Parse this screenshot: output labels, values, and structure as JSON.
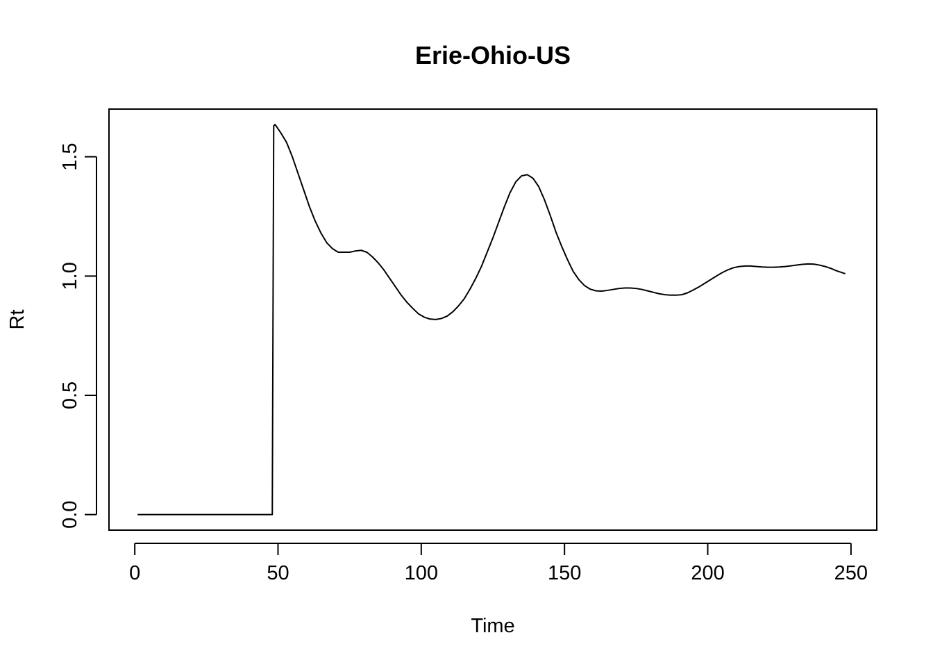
{
  "chart_data": {
    "type": "line",
    "title": "Erie-Ohio-US",
    "xlabel": "Time",
    "ylabel": "Rt",
    "xlim": [
      -9,
      259
    ],
    "ylim": [
      -0.065,
      1.7
    ],
    "x_ticks": [
      0,
      50,
      100,
      150,
      200,
      250
    ],
    "x_tick_labels": [
      "0",
      "50",
      "100",
      "150",
      "200",
      "250"
    ],
    "y_ticks": [
      0.0,
      0.5,
      1.0,
      1.5
    ],
    "y_tick_labels": [
      "0.0",
      "0.5",
      "1.0",
      "1.5"
    ],
    "grid": false,
    "legend": "none",
    "series": [
      {
        "color": "#000000",
        "x": [
          1,
          10,
          20,
          30,
          40,
          48,
          48.5,
          49,
          51,
          53,
          55,
          57,
          59,
          61,
          63,
          65,
          67,
          69,
          71,
          73,
          75,
          77,
          79,
          81,
          83,
          85,
          87,
          89,
          91,
          93,
          95,
          97,
          99,
          101,
          103,
          105,
          107,
          109,
          111,
          113,
          115,
          117,
          119,
          121,
          123,
          125,
          127,
          129,
          131,
          133,
          135,
          137,
          139,
          141,
          143,
          145,
          147,
          149,
          151,
          153,
          155,
          157,
          159,
          161,
          163,
          165,
          167,
          169,
          171,
          173,
          175,
          177,
          179,
          181,
          183,
          185,
          187,
          189,
          191,
          193,
          195,
          197,
          199,
          201,
          203,
          205,
          207,
          209,
          211,
          213,
          215,
          217,
          219,
          221,
          223,
          225,
          227,
          229,
          231,
          233,
          235,
          237,
          239,
          241,
          243,
          245,
          247,
          248
        ],
        "y": [
          0,
          0,
          0,
          0,
          0,
          0,
          1.63,
          1.635,
          1.6,
          1.56,
          1.5,
          1.43,
          1.36,
          1.29,
          1.23,
          1.18,
          1.14,
          1.115,
          1.1,
          1.1,
          1.1,
          1.105,
          1.108,
          1.1,
          1.08,
          1.055,
          1.025,
          0.99,
          0.955,
          0.92,
          0.89,
          0.865,
          0.842,
          0.828,
          0.82,
          0.818,
          0.822,
          0.832,
          0.85,
          0.875,
          0.905,
          0.945,
          0.99,
          1.04,
          1.1,
          1.16,
          1.225,
          1.29,
          1.35,
          1.395,
          1.42,
          1.425,
          1.41,
          1.375,
          1.32,
          1.255,
          1.185,
          1.125,
          1.07,
          1.02,
          0.985,
          0.96,
          0.945,
          0.938,
          0.937,
          0.94,
          0.944,
          0.948,
          0.95,
          0.95,
          0.948,
          0.944,
          0.938,
          0.932,
          0.926,
          0.922,
          0.92,
          0.92,
          0.922,
          0.93,
          0.942,
          0.955,
          0.97,
          0.985,
          1.0,
          1.014,
          1.026,
          1.035,
          1.04,
          1.042,
          1.042,
          1.04,
          1.038,
          1.037,
          1.037,
          1.038,
          1.04,
          1.043,
          1.046,
          1.049,
          1.051,
          1.05,
          1.046,
          1.04,
          1.032,
          1.022,
          1.014,
          1.01
        ]
      }
    ]
  }
}
